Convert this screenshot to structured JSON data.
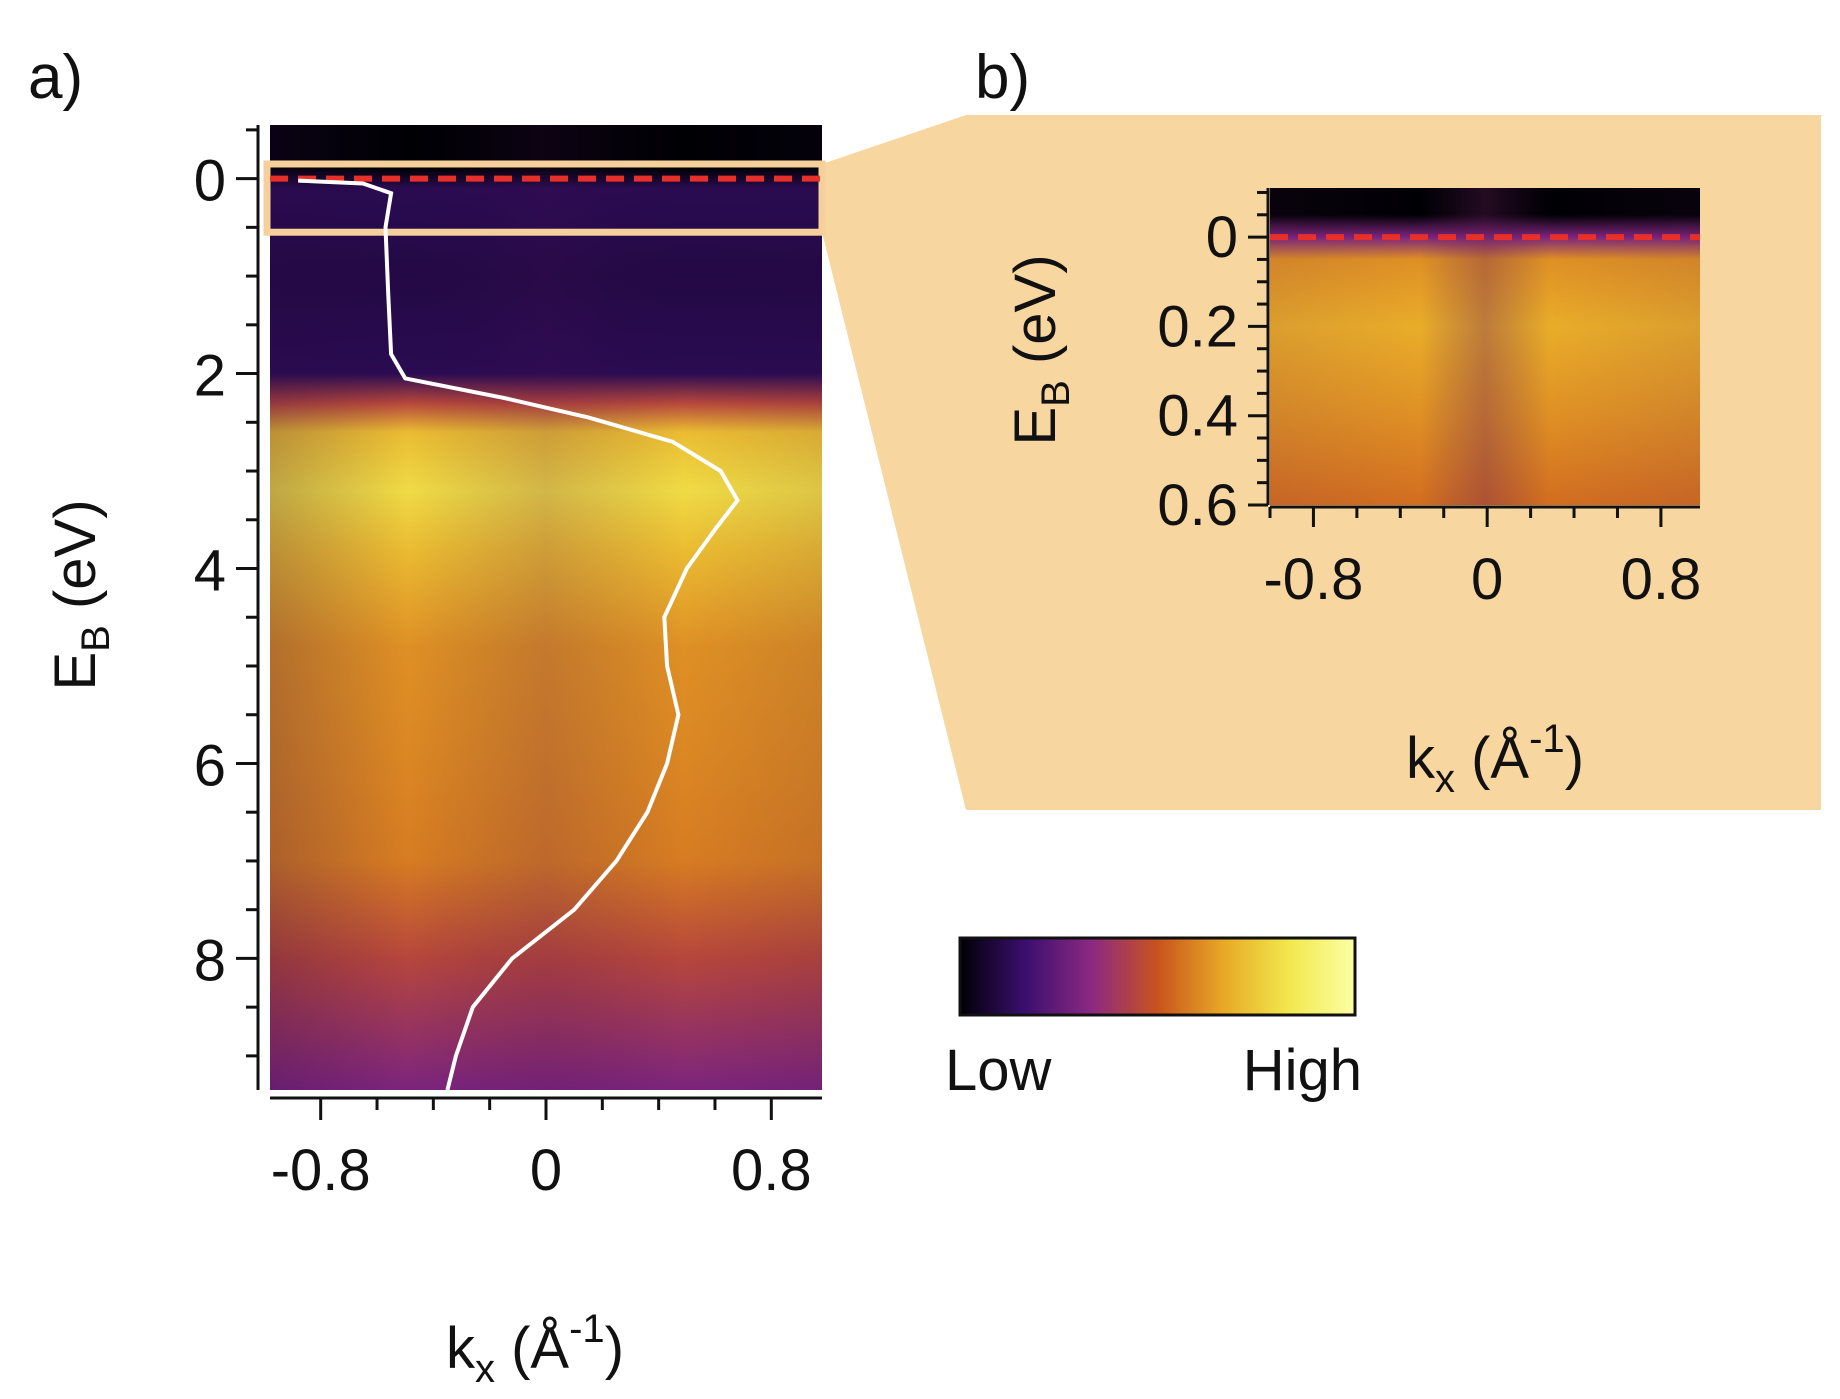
{
  "chart_data": [
    {
      "panel": "a)",
      "type": "heatmap",
      "title": "",
      "x": {
        "label": "k",
        "label_sub": "x",
        "unit_open": " (Å",
        "unit_sup": "-1",
        "unit_close": ")",
        "range": [
          -0.98,
          0.98
        ],
        "ticks": [
          -0.8,
          0,
          0.8
        ],
        "tick_labels": [
          "-0.8",
          "0",
          "0.8"
        ]
      },
      "y": {
        "label": "E",
        "label_sub": "B",
        "unit": " (eV)",
        "range": [
          -0.55,
          9.35
        ],
        "inverted": true,
        "ticks": [
          0,
          2,
          4,
          6,
          8
        ],
        "tick_labels": [
          "0",
          "2",
          "4",
          "6",
          "8"
        ]
      },
      "intensity_profile": [
        {
          "E": -0.55,
          "I": 0.0
        },
        {
          "E": -0.1,
          "I": 0.0
        },
        {
          "E": 0.1,
          "I": 0.12
        },
        {
          "E": 1.0,
          "I": 0.1
        },
        {
          "E": 2.0,
          "I": 0.12
        },
        {
          "E": 2.3,
          "I": 0.45
        },
        {
          "E": 2.6,
          "I": 0.72
        },
        {
          "E": 3.2,
          "I": 0.8
        },
        {
          "E": 3.8,
          "I": 0.72
        },
        {
          "E": 4.8,
          "I": 0.62
        },
        {
          "E": 6.0,
          "I": 0.6
        },
        {
          "E": 7.0,
          "I": 0.58
        },
        {
          "E": 8.0,
          "I": 0.45
        },
        {
          "E": 9.35,
          "I": 0.3
        }
      ],
      "edc_curve": {
        "color": "#ffffff",
        "points": [
          {
            "E": 0.02,
            "k": -0.88
          },
          {
            "E": 0.05,
            "k": -0.65
          },
          {
            "E": 0.15,
            "k": -0.55
          },
          {
            "E": 0.5,
            "k": -0.57
          },
          {
            "E": 1.2,
            "k": -0.56
          },
          {
            "E": 1.8,
            "k": -0.55
          },
          {
            "E": 2.05,
            "k": -0.5
          },
          {
            "E": 2.25,
            "k": -0.15
          },
          {
            "E": 2.45,
            "k": 0.15
          },
          {
            "E": 2.7,
            "k": 0.45
          },
          {
            "E": 3.0,
            "k": 0.62
          },
          {
            "E": 3.3,
            "k": 0.68
          },
          {
            "E": 3.6,
            "k": 0.6
          },
          {
            "E": 4.0,
            "k": 0.5
          },
          {
            "E": 4.5,
            "k": 0.42
          },
          {
            "E": 5.0,
            "k": 0.43
          },
          {
            "E": 5.5,
            "k": 0.47
          },
          {
            "E": 6.0,
            "k": 0.43
          },
          {
            "E": 6.5,
            "k": 0.36
          },
          {
            "E": 7.0,
            "k": 0.25
          },
          {
            "E": 7.5,
            "k": 0.1
          },
          {
            "E": 8.0,
            "k": -0.12
          },
          {
            "E": 8.5,
            "k": -0.26
          },
          {
            "E": 9.0,
            "k": -0.32
          },
          {
            "E": 9.35,
            "k": -0.35
          }
        ]
      },
      "fermi_level": {
        "E": 0,
        "color": "#e8302a",
        "style": "dashed"
      },
      "highlight_box": {
        "E_range": [
          -0.15,
          0.55
        ],
        "k_range": [
          -0.98,
          0.98
        ],
        "color": "#f6d09a"
      }
    },
    {
      "panel": "b)",
      "type": "heatmap",
      "title": "",
      "x": {
        "label": "k",
        "label_sub": "x",
        "unit_open": " (Å",
        "unit_sup": "-1",
        "unit_close": ")",
        "range": [
          -1.0,
          0.98
        ],
        "ticks": [
          -0.8,
          0,
          0.8
        ],
        "tick_labels": [
          "-0.8",
          "0",
          "0.8"
        ]
      },
      "y": {
        "label": "E",
        "label_sub": "B",
        "unit": " (eV)",
        "range": [
          -0.11,
          0.6
        ],
        "inverted": true,
        "ticks": [
          0,
          0.2,
          0.4,
          0.6
        ],
        "tick_labels": [
          "0",
          "0.2",
          "0.4",
          "0.6"
        ]
      },
      "intensity_profile": [
        {
          "E": -0.11,
          "I": 0.0
        },
        {
          "E": -0.05,
          "I": 0.0
        },
        {
          "E": 0.0,
          "I": 0.3
        },
        {
          "E": 0.05,
          "I": 0.62
        },
        {
          "E": 0.2,
          "I": 0.68
        },
        {
          "E": 0.4,
          "I": 0.62
        },
        {
          "E": 0.6,
          "I": 0.55
        }
      ],
      "fermi_level": {
        "E": 0,
        "color": "#e8302a",
        "style": "dashed"
      },
      "background_color": "#f8d6a0"
    }
  ],
  "colorbar": {
    "colormap": "inferno",
    "stops": [
      "#000004",
      "#3b0f70",
      "#8c2981",
      "#c8531e",
      "#e8a826",
      "#f2e84d",
      "#fcffa4"
    ],
    "min_label": "Low",
    "max_label": "High"
  }
}
